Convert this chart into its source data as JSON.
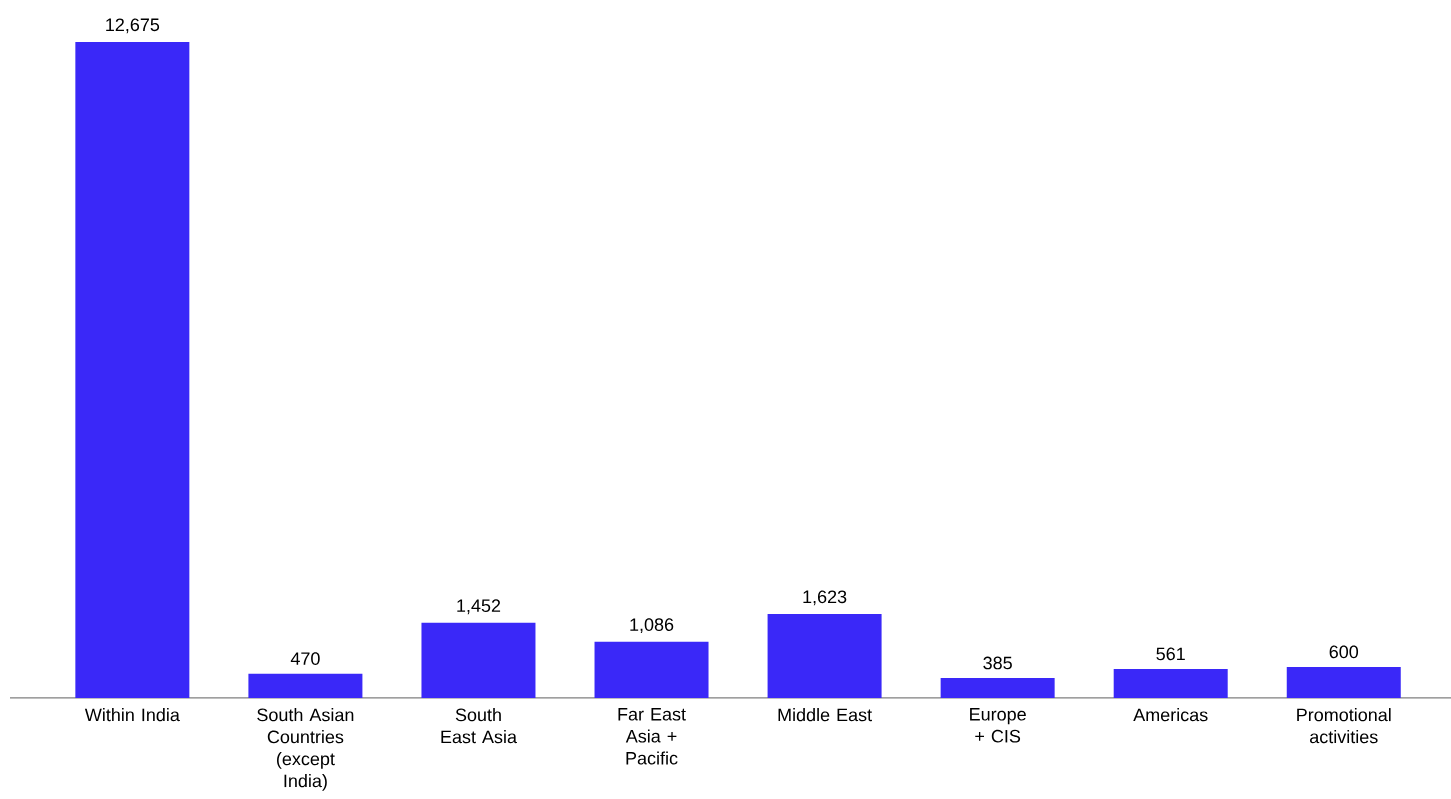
{
  "chart_data": {
    "type": "bar",
    "categories": [
      "Within India",
      "South Asian Countries (except India)",
      "South East Asia",
      "Far East Asia + Pacific",
      "Middle East",
      "Europe + CIS",
      "Americas",
      "Promotional activities"
    ],
    "values": [
      12675,
      470,
      1452,
      1086,
      1623,
      385,
      561,
      600
    ],
    "color": "#3a28f8",
    "value_labels": [
      "12,675",
      "470",
      "1,452",
      "1,086",
      "1,623",
      "385",
      "561",
      "600"
    ]
  }
}
